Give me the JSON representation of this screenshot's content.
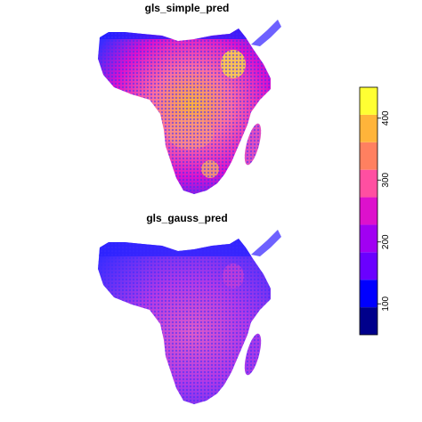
{
  "panels": [
    {
      "title": "gls_simple_pred"
    },
    {
      "title": "gls_gauss_pred"
    }
  ],
  "legend": {
    "ticks": [
      "100",
      "200",
      "300",
      "400"
    ],
    "colors": [
      "#00008B",
      "#0000FF",
      "#6A00FF",
      "#A100F2",
      "#DD11CC",
      "#FF4FA1",
      "#FF8060",
      "#FFB43A",
      "#FFFF33"
    ],
    "range": [
      50,
      450
    ],
    "tick_values": [
      100,
      200,
      300,
      400
    ]
  }
}
